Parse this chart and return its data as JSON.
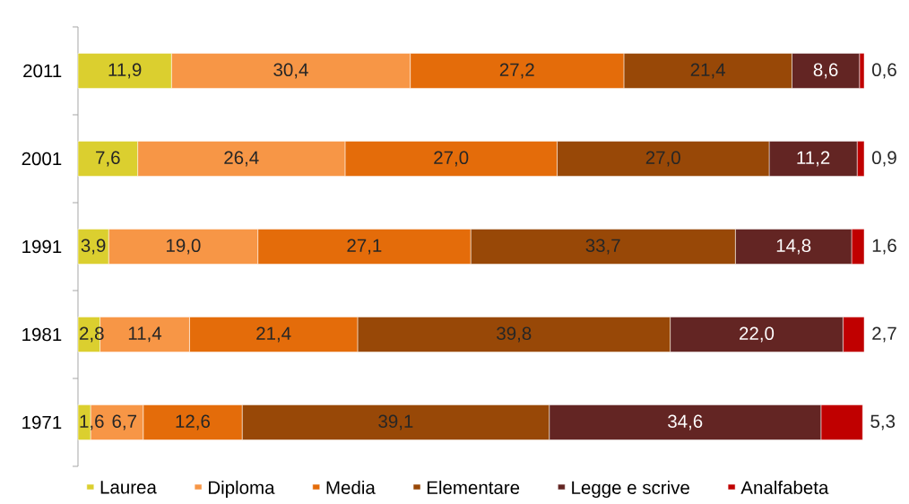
{
  "chart_data": {
    "type": "bar",
    "orientation": "horizontal",
    "stacked": true,
    "categories": [
      "2011",
      "2001",
      "1991",
      "1981",
      "1971"
    ],
    "series": [
      {
        "name": "Laurea",
        "color": "#dbcf2f",
        "values": [
          11.9,
          7.6,
          3.9,
          2.8,
          1.6
        ],
        "value_labels": [
          "11,9",
          "7,6",
          "3,9",
          "2,8",
          "1,6"
        ]
      },
      {
        "name": "Diploma",
        "color": "#f79646",
        "values": [
          30.4,
          26.4,
          19.0,
          11.4,
          6.7
        ],
        "value_labels": [
          "30,4",
          "26,4",
          "19,0",
          "11,4",
          "6,7"
        ]
      },
      {
        "name": "Media",
        "color": "#e46c0a",
        "values": [
          27.2,
          27.0,
          27.1,
          21.4,
          12.6
        ],
        "value_labels": [
          "27,2",
          "27,0",
          "27,1",
          "21,4",
          "12,6"
        ]
      },
      {
        "name": "Elementare",
        "color": "#984807",
        "values": [
          21.4,
          27.0,
          33.7,
          39.8,
          39.1
        ],
        "value_labels": [
          "21,4",
          "27,0",
          "33,7",
          "39,8",
          "39,1"
        ]
      },
      {
        "name": "Legge e scrive",
        "color": "#632523",
        "values": [
          8.6,
          11.2,
          14.8,
          22.0,
          34.6
        ],
        "value_labels": [
          "8,6",
          "11,2",
          "14,8",
          "22,0",
          "34,6"
        ]
      },
      {
        "name": "Analfabeta",
        "color": "#c00000",
        "values": [
          0.6,
          0.9,
          1.6,
          2.7,
          5.3
        ],
        "value_labels": [
          "0,6",
          "0,9",
          "1,6",
          "2,7",
          "5,3"
        ]
      }
    ],
    "legend": "bottom",
    "tick_labels": "y"
  }
}
